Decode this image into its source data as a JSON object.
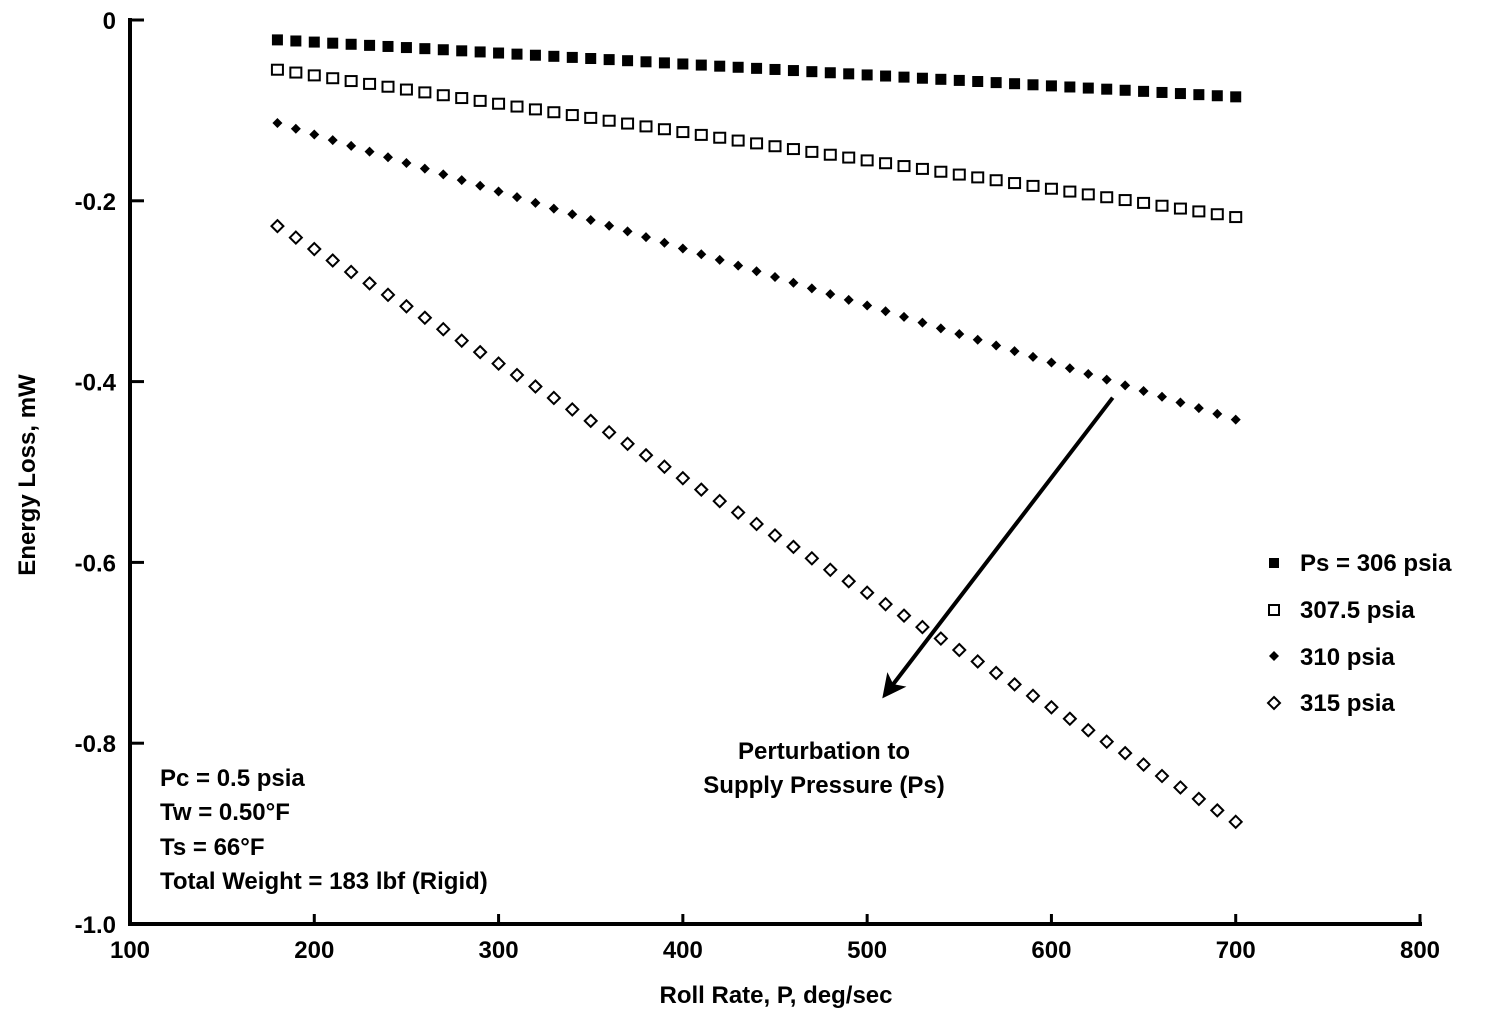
{
  "chart_data": {
    "type": "scatter",
    "title": "",
    "xlabel": "Roll Rate, P, deg/sec",
    "ylabel": "Energy Loss, mW",
    "xlim": [
      100,
      800
    ],
    "ylim": [
      -1.0,
      0
    ],
    "x_ticks": [
      "100",
      "200",
      "300",
      "400",
      "500",
      "600",
      "700",
      "800"
    ],
    "y_ticks": [
      "0",
      "-0.2",
      "-0.4",
      "-0.6",
      "-0.8",
      "-1.0"
    ],
    "grid": false,
    "legend_position": "right",
    "series": [
      {
        "name": "Ps = 306 psia",
        "marker": "filled-square",
        "x_start": 180,
        "x_end": 700,
        "y_start": -0.022,
        "y_end": -0.085,
        "points": 53
      },
      {
        "name": "307.5 psia",
        "marker": "open-square",
        "x_start": 180,
        "x_end": 700,
        "y_start": -0.055,
        "y_end": -0.218,
        "points": 53
      },
      {
        "name": "310 psia",
        "marker": "filled-diamond",
        "x_start": 180,
        "x_end": 700,
        "y_start": -0.114,
        "y_end": -0.442,
        "points": 53
      },
      {
        "name": "315 psia",
        "marker": "open-diamond",
        "x_start": 180,
        "x_end": 700,
        "y_start": -0.228,
        "y_end": -0.887,
        "points": 53
      }
    ],
    "annotations": {
      "arrow_label": [
        "Perturbation to",
        "Supply Pressure (Ps)"
      ],
      "arrow_from": [
        630,
        -0.42
      ],
      "arrow_to": [
        500,
        -0.77
      ],
      "conditions": [
        "Pc = 0.5 psia",
        "Tw = 0.50°F",
        "Ts = 66°F",
        "Total Weight = 183 lbf (Rigid)"
      ]
    }
  }
}
